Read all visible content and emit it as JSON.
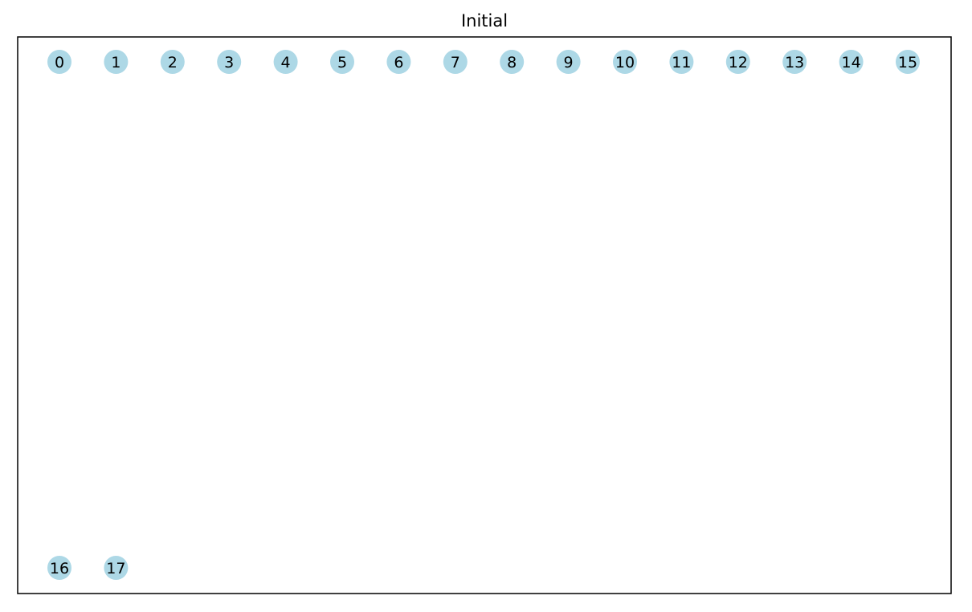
{
  "figure": {
    "title": "Initial"
  },
  "graph": {
    "node_color": "#add8e6",
    "label_color": "#000000",
    "frame_color": "#000000",
    "background": "#ffffff",
    "nodes": [
      {
        "id": "0",
        "label": "0"
      },
      {
        "id": "1",
        "label": "1"
      },
      {
        "id": "2",
        "label": "2"
      },
      {
        "id": "3",
        "label": "3"
      },
      {
        "id": "4",
        "label": "4"
      },
      {
        "id": "5",
        "label": "5"
      },
      {
        "id": "6",
        "label": "6"
      },
      {
        "id": "7",
        "label": "7"
      },
      {
        "id": "8",
        "label": "8"
      },
      {
        "id": "9",
        "label": "9"
      },
      {
        "id": "10",
        "label": "10"
      },
      {
        "id": "11",
        "label": "11"
      },
      {
        "id": "12",
        "label": "12"
      },
      {
        "id": "13",
        "label": "13"
      },
      {
        "id": "14",
        "label": "14"
      },
      {
        "id": "15",
        "label": "15"
      },
      {
        "id": "16",
        "label": "16"
      },
      {
        "id": "17",
        "label": "17"
      }
    ],
    "edges": []
  }
}
